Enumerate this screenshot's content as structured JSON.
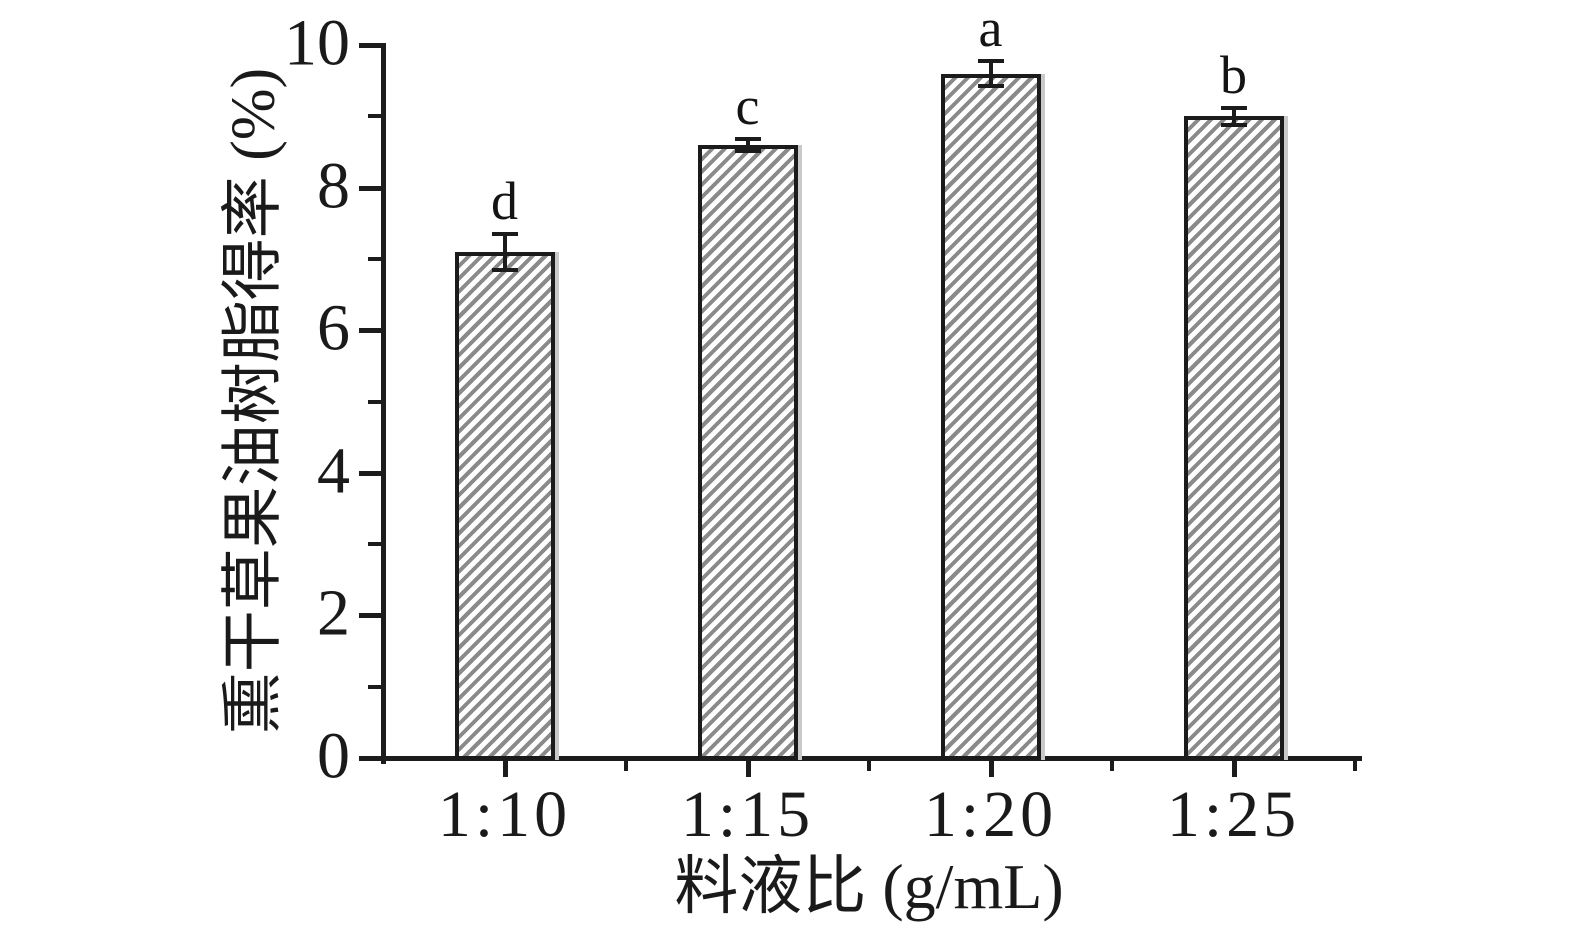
{
  "figure": {
    "background": "#ffffff",
    "axis_color": "#1c1c1c"
  },
  "chart_data": {
    "type": "bar",
    "title": "",
    "xlabel": "料液比 (g/mL)",
    "ylabel": "熏干草果油树脂得率 (%)",
    "categories": [
      "1:10",
      "1:15",
      "1:20",
      "1:25"
    ],
    "values": [
      7.1,
      8.6,
      9.6,
      9.0
    ],
    "errors": [
      0.25,
      0.08,
      0.17,
      0.12
    ],
    "sig_letters": [
      "d",
      "c",
      "a",
      "b"
    ],
    "ylim": [
      0,
      10
    ],
    "y_major_ticks": [
      0,
      2,
      4,
      6,
      8,
      10
    ],
    "y_minor_ticks": [
      1,
      3,
      5,
      7,
      9
    ],
    "grid": false,
    "legend": false,
    "bar_fill": "#ffffff",
    "bar_hatch": "forward-diagonal",
    "hatch_color": "#8a8a8a",
    "bar_border_color": "#1b1b1b",
    "error_bar_color": "#1b1b1b"
  }
}
